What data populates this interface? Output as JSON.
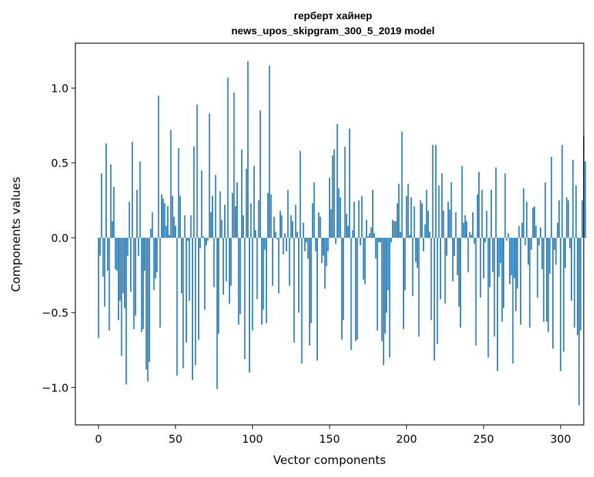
{
  "chart_data": {
    "type": "bar",
    "title": "герберт хайнер",
    "subtitle": "news_upos_skipgram_300_5_2019 model",
    "xlabel": "Vector components",
    "ylabel": "Components values",
    "xlim": [
      -15,
      315
    ],
    "ylim": [
      -1.25,
      1.3
    ],
    "x_ticks": [
      0,
      50,
      100,
      150,
      200,
      250,
      300
    ],
    "x_tick_labels": [
      "0",
      "50",
      "100",
      "150",
      "200",
      "250",
      "300"
    ],
    "y_ticks": [
      -1.0,
      -0.5,
      0.0,
      0.5,
      1.0
    ],
    "y_tick_labels": [
      "−1.0",
      "−0.5",
      "0.0",
      "0.5",
      "1.0"
    ],
    "bar_color": "#1f77b4",
    "grid": false,
    "legend": "none",
    "values": [
      -0.67,
      -0.12,
      0.43,
      -0.26,
      -0.46,
      0.63,
      -0.22,
      -0.62,
      0.49,
      0.11,
      0.34,
      -0.21,
      -0.22,
      -0.55,
      -0.42,
      -0.79,
      -0.37,
      -0.47,
      -0.98,
      -0.12,
      0.24,
      -0.36,
      0.64,
      -0.61,
      -0.52,
      0.32,
      -0.12,
      0.51,
      -0.63,
      -0.61,
      -0.22,
      -0.88,
      -0.96,
      -0.83,
      0.06,
      0.17,
      -0.35,
      -0.27,
      -0.23,
      0.95,
      -0.6,
      0.29,
      0.26,
      0.23,
      0.08,
      0.21,
      0.02,
      0.72,
      0.28,
      0.14,
      0.08,
      -0.92,
      0.6,
      0.28,
      -0.37,
      -0.87,
      0.15,
      -0.7,
      -0.02,
      -0.42,
      0.15,
      -0.95,
      0.61,
      -0.85,
      0.89,
      -0.68,
      -0.07,
      0.45,
      0.01,
      -0.48,
      -0.05,
      -0.02,
      0.83,
      0.17,
      0.28,
      -0.33,
      0.42,
      -1.01,
      -0.64,
      0.31,
      0.12,
      -0.38,
      0.22,
      -0.29,
      1.07,
      -0.44,
      -0.32,
      0.3,
      0.97,
      0.21,
      0.37,
      -0.58,
      -0.51,
      0.59,
      0.15,
      -0.81,
      0.46,
      1.18,
      -0.9,
      0.23,
      -0.62,
      0.48,
      0.05,
      -0.41,
      0.25,
      0.85,
      -0.58,
      -0.48,
      -0.08,
      -0.57,
      0.3,
      1.15,
      0.29,
      -0.32,
      0.14,
      0.04,
      -0.01,
      -0.37,
      0.18,
      0.15,
      -0.11,
      0.03,
      -0.09,
      0.32,
      -0.32,
      0.15,
      0.11,
      -0.7,
      0.22,
      0.04,
      -0.5,
      0.58,
      -0.84,
      0.1,
      -0.09,
      -0.03,
      -0.14,
      -0.72,
      -0.57,
      0.23,
      0.37,
      -0.09,
      -0.82,
      0.17,
      0.14,
      -0.17,
      -0.12,
      -0.34,
      -0.19,
      -0.09,
      0.4,
      0.19,
      0.55,
      0.59,
      -0.04,
      0.76,
      0.33,
      0.27,
      -0.68,
      -0.55,
      0.61,
      0.16,
      0.08,
      0.73,
      -0.75,
      0.05,
      0.24,
      -0.69,
      -0.68,
      0.25,
      -0.05,
      0.28,
      -0.28,
      -0.31,
      0.12,
      0.01,
      0.03,
      0.07,
      0.32,
      0.03,
      -0.14,
      -0.62,
      -0.03,
      -0.03,
      -0.69,
      -0.85,
      -0.64,
      -0.5,
      -0.35,
      -0.8,
      -0.03,
      0.12,
      0.11,
      0.11,
      0.23,
      0.36,
      0.04,
      0.71,
      -0.61,
      -0.35,
      0.28,
      0.36,
      0.02,
      0.27,
      -0.39,
      0.21,
      -0.16,
      -0.2,
      -0.66,
      0.25,
      0.23,
      -0.09,
      0.09,
      0.32,
      0.18,
      0.04,
      -0.55,
      0.62,
      -0.82,
      0.62,
      -0.71,
      0.35,
      -0.41,
      0.43,
      0.18,
      -0.44,
      -0.12,
      0.24,
      0.19,
      0.37,
      -0.29,
      -0.12,
      0.17,
      -0.25,
      -0.46,
      -0.6,
      0.48,
      0.1,
      0.15,
      0.11,
      -0.23,
      0.04,
      0.02,
      0.17,
      -0.04,
      -0.72,
      0.29,
      0.44,
      -0.4,
      0.32,
      -0.27,
      -0.03,
      0.18,
      -0.8,
      -0.33,
      0.32,
      -0.23,
      -0.66,
      0.47,
      -0.89,
      -0.26,
      -0.17,
      -0.56,
      -0.47,
      0.43,
      -0.02,
      0.03,
      -0.31,
      -0.25,
      -0.84,
      -0.27,
      -0.49,
      -0.34,
      0.08,
      -0.58,
      0.1,
      0.33,
      -0.05,
      0.24,
      -0.18,
      -0.6,
      -0.08,
      0.2,
      0.21,
      0.08,
      -0.4,
      -0.05,
      0.07,
      -0.21,
      -0.56,
      0.37,
      -0.56,
      -0.63,
      -0.24,
      0.54,
      -0.74,
      -0.08,
      -0.18,
      0.1,
      0.25,
      -0.89,
      0.62,
      -0.76,
      -0.2,
      0.27,
      0.25,
      -0.07,
      -0.42,
      0.52,
      -0.6,
      0.35,
      -0.65,
      -1.12,
      -0.62,
      0.25,
      0.68,
      0.51
    ]
  }
}
